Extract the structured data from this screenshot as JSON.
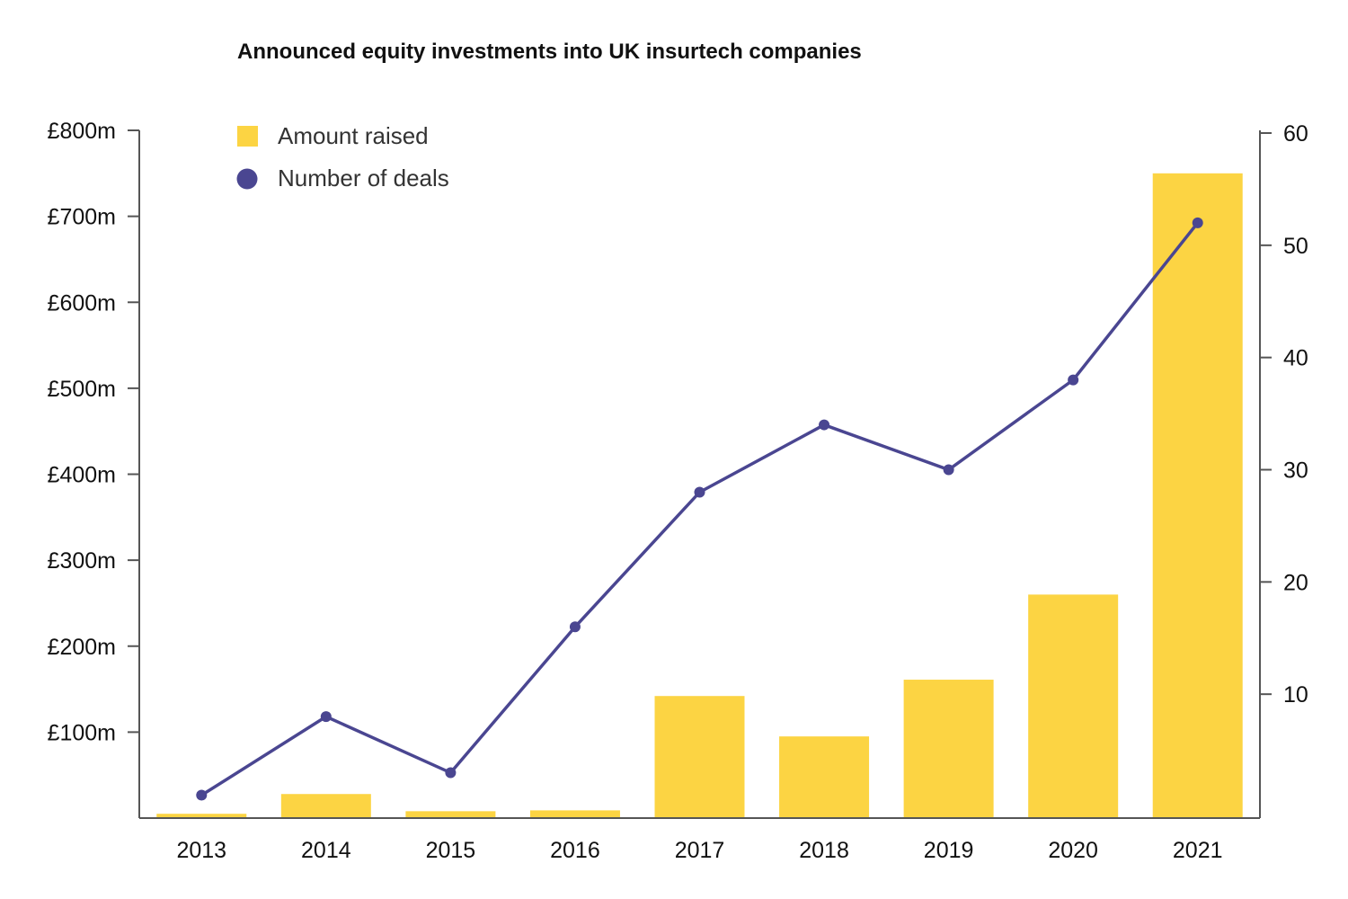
{
  "chart_data": {
    "type": "bar",
    "title": "Announced equity investments into UK insurtech companies",
    "categories": [
      "2013",
      "2014",
      "2015",
      "2016",
      "2017",
      "2018",
      "2019",
      "2020",
      "2021"
    ],
    "series": [
      {
        "name": "Amount raised",
        "type": "bar",
        "axis": "left",
        "color": "#FCD443",
        "values": [
          5,
          28,
          8,
          9,
          142,
          95,
          161,
          260,
          750
        ]
      },
      {
        "name": "Number of deals",
        "type": "line",
        "axis": "right",
        "color": "#4A4691",
        "values": [
          1,
          8,
          3,
          16,
          28,
          34,
          30,
          38,
          52
        ]
      }
    ],
    "y_left": {
      "ylim": [
        0,
        800
      ],
      "ticks": [
        100,
        200,
        300,
        400,
        500,
        600,
        700,
        800
      ],
      "tick_labels": [
        "£100m",
        "£200m",
        "£300m",
        "£400m",
        "£500m",
        "£600m",
        "£700m",
        "£800m"
      ]
    },
    "y_right": {
      "ylim": [
        0,
        60
      ],
      "ticks": [
        10,
        20,
        30,
        40,
        50,
        60
      ],
      "tick_labels": [
        "10",
        "20",
        "30",
        "40",
        "50",
        "60"
      ]
    },
    "grid": false,
    "legend": "top-left"
  }
}
